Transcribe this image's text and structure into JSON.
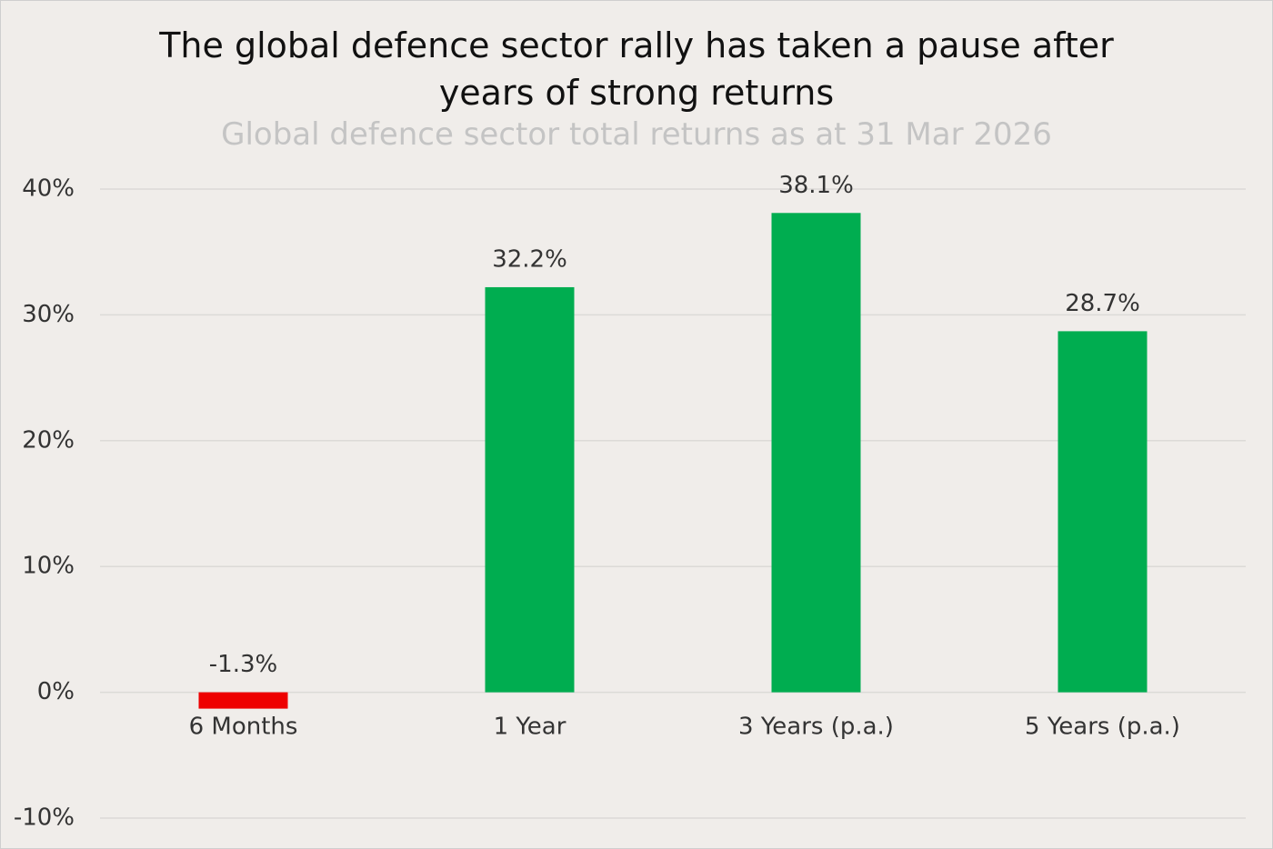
{
  "chart_data": {
    "type": "bar",
    "title": "The global defence sector rally has taken a pause after years of strong returns",
    "subtitle": "Global defence sector total returns as at 31 Mar 2026",
    "categories": [
      "6 Months",
      "1 Year",
      "3 Years (p.a.)",
      "5 Years (p.a.)"
    ],
    "values": [
      -1.3,
      32.2,
      38.1,
      28.7
    ],
    "value_labels": [
      "-1.3%",
      "32.2%",
      "38.1%",
      "28.7%"
    ],
    "colors": [
      "#ee0000",
      "#00ad50",
      "#00ad50",
      "#00ad50"
    ],
    "ylim": [
      -10,
      40
    ],
    "yticks": [
      {
        "value": -10,
        "label": "-10%"
      },
      {
        "value": 0,
        "label": "0%"
      },
      {
        "value": 10,
        "label": "10%"
      },
      {
        "value": 20,
        "label": "20%"
      },
      {
        "value": 30,
        "label": "30%"
      },
      {
        "value": 40,
        "label": "40%"
      }
    ],
    "grid": true
  }
}
